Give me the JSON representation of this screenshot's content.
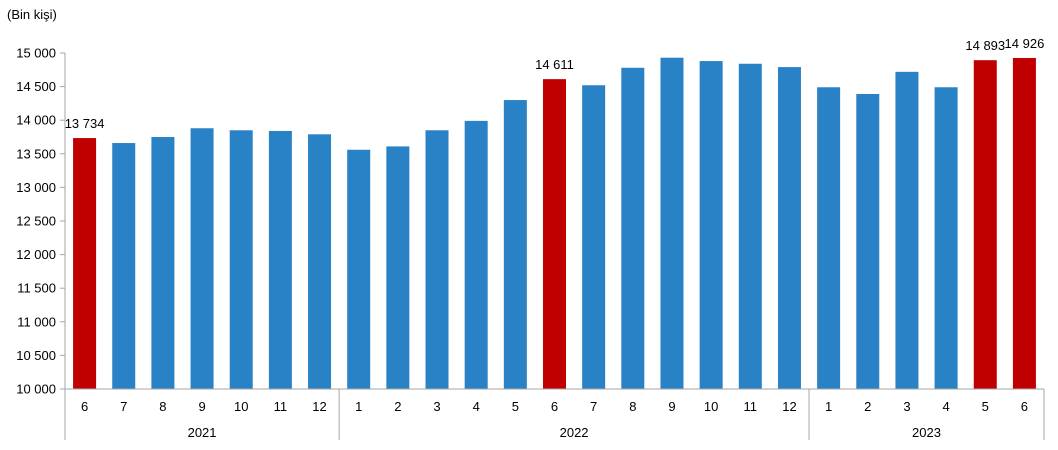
{
  "chart_data": {
    "type": "bar",
    "ylabel": "(Bin kişi)",
    "ylim": [
      10000,
      15000
    ],
    "y_ticks": [
      10000,
      10500,
      11000,
      11500,
      12000,
      12500,
      13000,
      13500,
      14000,
      14500,
      15000
    ],
    "y_tick_labels": [
      "10 000",
      "10 500",
      "11 000",
      "11 500",
      "12 000",
      "12 500",
      "13 000",
      "13 500",
      "14 000",
      "14 500",
      "15 000"
    ],
    "categories": [
      "6",
      "7",
      "8",
      "9",
      "10",
      "11",
      "12",
      "1",
      "2",
      "3",
      "4",
      "5",
      "6",
      "7",
      "8",
      "9",
      "10",
      "11",
      "12",
      "1",
      "2",
      "3",
      "4",
      "5",
      "6"
    ],
    "values": [
      13734,
      13660,
      13750,
      13880,
      13850,
      13840,
      13790,
      13560,
      13610,
      13850,
      13990,
      14300,
      14611,
      14520,
      14780,
      14930,
      14880,
      14840,
      14790,
      14490,
      14390,
      14720,
      14490,
      14893,
      14926
    ],
    "highlight": [
      0,
      12,
      23,
      24
    ],
    "data_labels": [
      {
        "index": 0,
        "text": "13 734"
      },
      {
        "index": 12,
        "text": "14 611"
      },
      {
        "index": 23,
        "text": "14 893"
      },
      {
        "index": 24,
        "text": "14 926"
      }
    ],
    "year_groups": [
      {
        "label": "2021",
        "start": 0,
        "end": 6
      },
      {
        "label": "2022",
        "start": 7,
        "end": 18
      },
      {
        "label": "2023",
        "start": 19,
        "end": 24
      }
    ],
    "colors": {
      "bar": "#2981c6",
      "highlight": "#c00000",
      "axis": "#a6a6a6"
    },
    "grid": false,
    "legend": "none"
  }
}
